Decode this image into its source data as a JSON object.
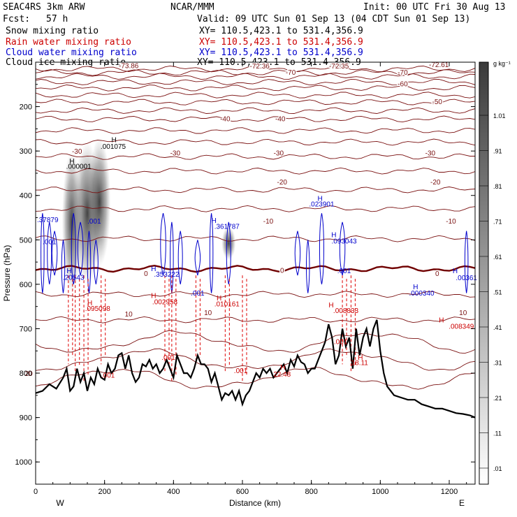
{
  "header": {
    "model": "SEAC4RS  3km ARW",
    "org": "NCAR/MMM",
    "init": "Init: 00 UTC Fri 30 Aug 13",
    "fcst_label": "Fcst:",
    "fcst_value": "57 h",
    "valid": "Valid: 09 UTC Sun 01 Sep 13 (04 CDT Sun 01 Sep 13)"
  },
  "legend": [
    {
      "name": "Snow mixing ratio",
      "xy": "XY= 110.5,423.1 to 531.4,356.9",
      "color": "#000000"
    },
    {
      "name": "Rain water mixing ratio",
      "xy": "XY= 110.5,423.1 to 531.4,356.9",
      "color": "#cc0000"
    },
    {
      "name": "Cloud water mixing ratio",
      "xy": "XY= 110.5,423.1 to 531.4,356.9",
      "color": "#0000cc"
    },
    {
      "name": "Cloud ice mixing ratio",
      "xy": "XY= 110.5,423.1 to 531.4,356.9",
      "color": "#000000"
    }
  ],
  "colorbar": {
    "unit": "g kg⁻¹",
    "labels": [
      "1.01",
      ".91",
      ".81",
      ".71",
      ".61",
      ".51",
      ".41",
      ".31",
      ".21",
      ".11",
      ".01"
    ]
  },
  "chart_data": {
    "type": "contour-cross-section",
    "xlabel": "Distance (km)",
    "ylabel": "Pressure (hPa)",
    "xlim": [
      0,
      1275
    ],
    "ylim": [
      1050,
      100
    ],
    "x_ticks": [
      0,
      200,
      400,
      600,
      800,
      1000,
      1200
    ],
    "y_ticks": [
      200,
      300,
      400,
      500,
      600,
      700,
      800,
      900,
      1000
    ],
    "x_ends": {
      "left": "W",
      "right": "E"
    },
    "terrain": {
      "x": [
        0,
        20,
        40,
        60,
        80,
        90,
        100,
        110,
        120,
        130,
        140,
        150,
        160,
        170,
        180,
        190,
        200,
        210,
        220,
        230,
        240,
        250,
        260,
        270,
        280,
        290,
        300,
        310,
        320,
        330,
        340,
        350,
        360,
        370,
        380,
        390,
        400,
        410,
        420,
        430,
        440,
        450,
        460,
        470,
        480,
        490,
        500,
        510,
        520,
        530,
        540,
        550,
        560,
        570,
        580,
        590,
        600,
        610,
        620,
        630,
        640,
        650,
        660,
        670,
        680,
        690,
        700,
        710,
        720,
        730,
        740,
        750,
        760,
        770,
        780,
        790,
        800,
        810,
        820,
        830,
        840,
        850,
        860,
        870,
        880,
        890,
        900,
        910,
        920,
        930,
        940,
        950,
        960,
        970,
        980,
        990,
        1000,
        1010,
        1020,
        1040,
        1060,
        1080,
        1100,
        1120,
        1140,
        1160,
        1180,
        1200,
        1220,
        1240,
        1260,
        1275
      ],
      "p": [
        845,
        840,
        825,
        835,
        810,
        790,
        840,
        830,
        790,
        820,
        800,
        840,
        810,
        825,
        790,
        810,
        815,
        780,
        800,
        790,
        760,
        755,
        790,
        760,
        800,
        820,
        810,
        780,
        785,
        770,
        790,
        780,
        800,
        790,
        770,
        790,
        810,
        760,
        780,
        800,
        800,
        810,
        790,
        760,
        780,
        780,
        790,
        820,
        800,
        830,
        860,
        845,
        850,
        840,
        860,
        840,
        870,
        850,
        840,
        820,
        800,
        810,
        790,
        800,
        790,
        810,
        800,
        790,
        780,
        800,
        770,
        785,
        760,
        775,
        780,
        800,
        790,
        790,
        770,
        750,
        730,
        690,
        720,
        780,
        760,
        700,
        740,
        720,
        790,
        700,
        760,
        720,
        700,
        740,
        700,
        680,
        750,
        800,
        830,
        850,
        855,
        860,
        860,
        870,
        875,
        880,
        880,
        885,
        890,
        892,
        895,
        900
      ]
    },
    "temperature_contours": [
      {
        "label": "-72.36",
        "p": 115
      },
      {
        "label": "-70",
        "p": 132
      },
      {
        "label": "-60",
        "p": 158
      },
      {
        "label": "-50",
        "p": 190
      },
      {
        "label": "-40",
        "p": 228
      },
      {
        "label": "-30",
        "p": 280
      },
      {
        "label": "-20",
        "p": 345
      },
      {
        "label": "-10",
        "p": 430
      },
      {
        "label": "0",
        "p": 565
      },
      {
        "label": "10",
        "p": 680
      }
    ],
    "temperature_label_text": [
      {
        "text": "-73.86",
        "x": 270,
        "p": 107
      },
      {
        "text": "-72.36",
        "x": 650,
        "p": 108
      },
      {
        "text": "-72.35",
        "x": 880,
        "p": 108
      },
      {
        "text": "-72.61",
        "x": 1170,
        "p": 105
      },
      {
        "text": "-70",
        "x": 740,
        "p": 122
      },
      {
        "text": "-70",
        "x": 1065,
        "p": 122
      },
      {
        "text": "-60",
        "x": 1065,
        "p": 148
      },
      {
        "text": "-50",
        "x": 1165,
        "p": 188
      },
      {
        "text": "-40",
        "x": 550,
        "p": 227
      },
      {
        "text": "-40",
        "x": 710,
        "p": 227
      },
      {
        "text": "-30",
        "x": 120,
        "p": 300
      },
      {
        "text": "-30",
        "x": 405,
        "p": 304
      },
      {
        "text": "-30",
        "x": 705,
        "p": 304
      },
      {
        "text": "-30",
        "x": 1145,
        "p": 304
      },
      {
        "text": "-20",
        "x": 715,
        "p": 369
      },
      {
        "text": "-20",
        "x": 1160,
        "p": 369
      },
      {
        "text": "-10",
        "x": 675,
        "p": 457
      },
      {
        "text": "-10",
        "x": 1205,
        "p": 457
      },
      {
        "text": "0",
        "x": 320,
        "p": 575
      },
      {
        "text": "0",
        "x": 715,
        "p": 568
      },
      {
        "text": "0",
        "x": 1165,
        "p": 575
      },
      {
        "text": "10",
        "x": 270,
        "p": 666
      },
      {
        "text": "10",
        "x": 500,
        "p": 663
      },
      {
        "text": "10",
        "x": 1240,
        "p": 663
      },
      {
        "text": "20",
        "x": -20,
        "p": 800
      }
    ],
    "extrema": [
      {
        "text": ".001075",
        "x": 225,
        "p": 295,
        "color": "#000000"
      },
      {
        "text": ".000001",
        "x": 125,
        "p": 340,
        "color": "#000000"
      },
      {
        "text": ".37879",
        "x": 35,
        "p": 460,
        "color": "#0000cc"
      },
      {
        "text": ".001",
        "x": 40,
        "p": 510,
        "color": "#0000cc"
      },
      {
        "text": ".001",
        "x": 170,
        "p": 463,
        "color": "#0000cc"
      },
      {
        "text": ".361787",
        "x": 555,
        "p": 475,
        "color": "#0000cc"
      },
      {
        "text": ".023901",
        "x": 830,
        "p": 425,
        "color": "#0000cc"
      },
      {
        "text": ".093043",
        "x": 895,
        "p": 508,
        "color": "#0000cc"
      },
      {
        "text": ".001",
        "x": 895,
        "p": 575,
        "color": "#0000cc"
      },
      {
        "text": ".353222",
        "x": 380,
        "p": 583,
        "color": "#0000cc"
      },
      {
        "text": ".20543",
        "x": 110,
        "p": 590,
        "color": "#0000cc"
      },
      {
        "text": ".001",
        "x": 470,
        "p": 625,
        "color": "#0000cc"
      },
      {
        "text": ".000340",
        "x": 1120,
        "p": 625,
        "color": "#0000cc"
      },
      {
        "text": ".00361",
        "x": 1250,
        "p": 591,
        "color": "#0000cc"
      },
      {
        "text": ".095098",
        "x": 180,
        "p": 660,
        "color": "#cc0000"
      },
      {
        "text": ".002958",
        "x": 375,
        "p": 645,
        "color": "#cc0000"
      },
      {
        "text": ".010161",
        "x": 555,
        "p": 650,
        "color": "#cc0000"
      },
      {
        "text": ".008833",
        "x": 900,
        "p": 665,
        "color": "#cc0000"
      },
      {
        "text": ".008349",
        "x": 1235,
        "p": 700,
        "color": "#cc0000"
      },
      {
        "text": ".001",
        "x": 885,
        "p": 735,
        "color": "#cc0000"
      },
      {
        "text": ".001",
        "x": 385,
        "p": 770,
        "color": "#cc0000"
      },
      {
        "text": ".001",
        "x": 210,
        "p": 810,
        "color": "#cc0000"
      },
      {
        "text": ".001",
        "x": 595,
        "p": 800,
        "color": "#cc0000"
      },
      {
        "text": "22.48",
        "x": 715,
        "p": 808,
        "color": "#cc0000"
      },
      {
        "text": "18.11",
        "x": 940,
        "p": 782,
        "color": "#cc0000"
      }
    ],
    "highs": [
      {
        "x": 220,
        "p": 280,
        "color": "#000000"
      },
      {
        "x": 98,
        "p": 328,
        "color": "#000000"
      },
      {
        "x": 818,
        "p": 412,
        "color": "#0000cc"
      },
      {
        "x": 510,
        "p": 462,
        "color": "#0000cc"
      },
      {
        "x": 858,
        "p": 494,
        "color": "#0000cc"
      },
      {
        "x": 335,
        "p": 570,
        "color": "#0000cc"
      },
      {
        "x": 90,
        "p": 575,
        "color": "#0000cc"
      },
      {
        "x": 1210,
        "p": 575,
        "color": "#0000cc"
      },
      {
        "x": 1095,
        "p": 611,
        "color": "#0000cc"
      },
      {
        "x": 150,
        "p": 647,
        "color": "#cc0000"
      },
      {
        "x": 335,
        "p": 631,
        "color": "#cc0000"
      },
      {
        "x": 525,
        "p": 636,
        "color": "#cc0000"
      },
      {
        "x": 850,
        "p": 652,
        "color": "#cc0000"
      },
      {
        "x": 1170,
        "p": 686,
        "color": "#cc0000"
      },
      {
        "x": 710,
        "p": 792,
        "color": "#cc0000"
      },
      {
        "x": 935,
        "p": 770,
        "color": "#cc0000"
      }
    ],
    "snow_plumes": [
      {
        "x": 105,
        "ptop": 300,
        "pbot": 620,
        "w": 14
      },
      {
        "x": 150,
        "ptop": 280,
        "pbot": 600,
        "w": 20
      },
      {
        "x": 185,
        "ptop": 270,
        "pbot": 560,
        "w": 16
      },
      {
        "x": 560,
        "ptop": 470,
        "pbot": 545,
        "w": 10
      }
    ],
    "cloud_water_columns": [
      20,
      40,
      55,
      80,
      110,
      130,
      155,
      175,
      370,
      395,
      420,
      470,
      510,
      560,
      760,
      790,
      830,
      890,
      1250
    ],
    "rain_columns": [
      95,
      115,
      140,
      190,
      375,
      395,
      465,
      550,
      600,
      890,
      915
    ]
  }
}
